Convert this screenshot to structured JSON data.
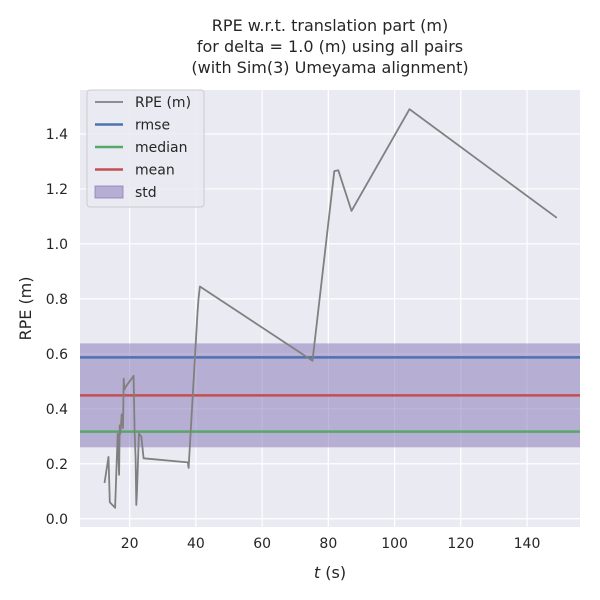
{
  "chart_data": {
    "type": "line",
    "title": [
      "RPE w.r.t. translation part (m)",
      "for delta = 1.0 (m) using all pairs",
      "(with Sim(3) Umeyama alignment)"
    ],
    "xlabel": "t (s)",
    "ylabel": "RPE (m)",
    "xlim": [
      5,
      156
    ],
    "ylim": [
      -0.03,
      1.56
    ],
    "xticks": [
      20,
      40,
      60,
      80,
      100,
      120,
      140
    ],
    "yticks": [
      0.0,
      0.2,
      0.4,
      0.6,
      0.8,
      1.0,
      1.2,
      1.4
    ],
    "xtick_labels": [
      "20",
      "40",
      "60",
      "80",
      "100",
      "120",
      "140"
    ],
    "ytick_labels": [
      "0.0",
      "0.2",
      "0.4",
      "0.6",
      "0.8",
      "1.0",
      "1.2",
      "1.4"
    ],
    "grid": true,
    "legend_position": "top-left",
    "series": [
      {
        "name": "RPE (m)",
        "color": "#808080",
        "x": [
          12.4,
          13.6,
          14.0,
          15.6,
          16.4,
          16.8,
          17.0,
          17.2,
          17.6,
          17.8,
          18.0,
          18.2,
          18.4,
          18.8,
          21.2,
          21.5,
          21.8,
          22.0,
          22.2,
          22.8,
          23.5,
          24.2,
          37.6,
          37.8,
          40.5,
          40.8,
          41.2,
          75.2,
          81.8,
          83.0,
          87.0,
          104.5,
          149.0
        ],
        "y": [
          0.13,
          0.225,
          0.06,
          0.04,
          0.31,
          0.16,
          0.34,
          0.31,
          0.38,
          0.36,
          0.33,
          0.51,
          0.47,
          0.48,
          0.52,
          0.32,
          0.22,
          0.05,
          0.1,
          0.31,
          0.3,
          0.22,
          0.205,
          0.185,
          0.75,
          0.8,
          0.845,
          0.575,
          1.265,
          1.268,
          1.12,
          1.49,
          1.095
        ]
      }
    ],
    "stats": {
      "rmse": 0.587,
      "median": 0.317,
      "mean": 0.449,
      "std": 0.189
    },
    "legend": [
      {
        "label": "RPE (m)",
        "kind": "line",
        "color": "#808080"
      },
      {
        "label": "rmse",
        "kind": "line",
        "color": "#4c72b0"
      },
      {
        "label": "median",
        "kind": "line",
        "color": "#55a868"
      },
      {
        "label": "mean",
        "kind": "line",
        "color": "#c44e52"
      },
      {
        "label": "std",
        "kind": "patch",
        "color": "#8172b3"
      }
    ]
  }
}
